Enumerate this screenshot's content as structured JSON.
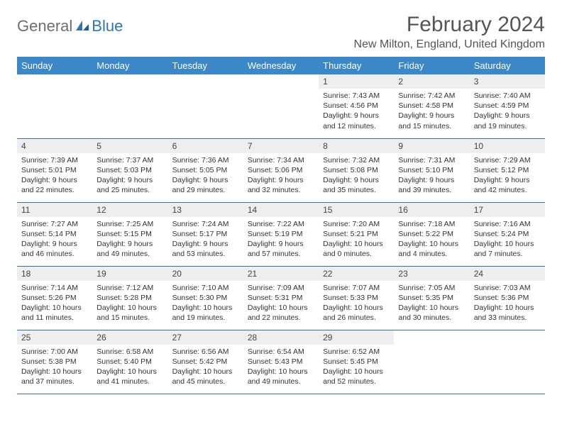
{
  "logo": {
    "general": "General",
    "blue": "Blue"
  },
  "title": "February 2024",
  "location": "New Milton, England, United Kingdom",
  "colors": {
    "header_bg": "#3b87c8",
    "header_text": "#ffffff",
    "day_num_bg": "#eceeef",
    "rule": "#3b6fa0",
    "logo_gray": "#6d6e71",
    "logo_blue": "#2f76b8"
  },
  "weekdays": [
    "Sunday",
    "Monday",
    "Tuesday",
    "Wednesday",
    "Thursday",
    "Friday",
    "Saturday"
  ],
  "weeks": [
    [
      null,
      null,
      null,
      null,
      {
        "n": "1",
        "sr": "7:43 AM",
        "ss": "4:56 PM",
        "dl": "9 hours and 12 minutes."
      },
      {
        "n": "2",
        "sr": "7:42 AM",
        "ss": "4:58 PM",
        "dl": "9 hours and 15 minutes."
      },
      {
        "n": "3",
        "sr": "7:40 AM",
        "ss": "4:59 PM",
        "dl": "9 hours and 19 minutes."
      }
    ],
    [
      {
        "n": "4",
        "sr": "7:39 AM",
        "ss": "5:01 PM",
        "dl": "9 hours and 22 minutes."
      },
      {
        "n": "5",
        "sr": "7:37 AM",
        "ss": "5:03 PM",
        "dl": "9 hours and 25 minutes."
      },
      {
        "n": "6",
        "sr": "7:36 AM",
        "ss": "5:05 PM",
        "dl": "9 hours and 29 minutes."
      },
      {
        "n": "7",
        "sr": "7:34 AM",
        "ss": "5:06 PM",
        "dl": "9 hours and 32 minutes."
      },
      {
        "n": "8",
        "sr": "7:32 AM",
        "ss": "5:08 PM",
        "dl": "9 hours and 35 minutes."
      },
      {
        "n": "9",
        "sr": "7:31 AM",
        "ss": "5:10 PM",
        "dl": "9 hours and 39 minutes."
      },
      {
        "n": "10",
        "sr": "7:29 AM",
        "ss": "5:12 PM",
        "dl": "9 hours and 42 minutes."
      }
    ],
    [
      {
        "n": "11",
        "sr": "7:27 AM",
        "ss": "5:14 PM",
        "dl": "9 hours and 46 minutes."
      },
      {
        "n": "12",
        "sr": "7:25 AM",
        "ss": "5:15 PM",
        "dl": "9 hours and 49 minutes."
      },
      {
        "n": "13",
        "sr": "7:24 AM",
        "ss": "5:17 PM",
        "dl": "9 hours and 53 minutes."
      },
      {
        "n": "14",
        "sr": "7:22 AM",
        "ss": "5:19 PM",
        "dl": "9 hours and 57 minutes."
      },
      {
        "n": "15",
        "sr": "7:20 AM",
        "ss": "5:21 PM",
        "dl": "10 hours and 0 minutes."
      },
      {
        "n": "16",
        "sr": "7:18 AM",
        "ss": "5:22 PM",
        "dl": "10 hours and 4 minutes."
      },
      {
        "n": "17",
        "sr": "7:16 AM",
        "ss": "5:24 PM",
        "dl": "10 hours and 7 minutes."
      }
    ],
    [
      {
        "n": "18",
        "sr": "7:14 AM",
        "ss": "5:26 PM",
        "dl": "10 hours and 11 minutes."
      },
      {
        "n": "19",
        "sr": "7:12 AM",
        "ss": "5:28 PM",
        "dl": "10 hours and 15 minutes."
      },
      {
        "n": "20",
        "sr": "7:10 AM",
        "ss": "5:30 PM",
        "dl": "10 hours and 19 minutes."
      },
      {
        "n": "21",
        "sr": "7:09 AM",
        "ss": "5:31 PM",
        "dl": "10 hours and 22 minutes."
      },
      {
        "n": "22",
        "sr": "7:07 AM",
        "ss": "5:33 PM",
        "dl": "10 hours and 26 minutes."
      },
      {
        "n": "23",
        "sr": "7:05 AM",
        "ss": "5:35 PM",
        "dl": "10 hours and 30 minutes."
      },
      {
        "n": "24",
        "sr": "7:03 AM",
        "ss": "5:36 PM",
        "dl": "10 hours and 33 minutes."
      }
    ],
    [
      {
        "n": "25",
        "sr": "7:00 AM",
        "ss": "5:38 PM",
        "dl": "10 hours and 37 minutes."
      },
      {
        "n": "26",
        "sr": "6:58 AM",
        "ss": "5:40 PM",
        "dl": "10 hours and 41 minutes."
      },
      {
        "n": "27",
        "sr": "6:56 AM",
        "ss": "5:42 PM",
        "dl": "10 hours and 45 minutes."
      },
      {
        "n": "28",
        "sr": "6:54 AM",
        "ss": "5:43 PM",
        "dl": "10 hours and 49 minutes."
      },
      {
        "n": "29",
        "sr": "6:52 AM",
        "ss": "5:45 PM",
        "dl": "10 hours and 52 minutes."
      },
      null,
      null
    ]
  ]
}
